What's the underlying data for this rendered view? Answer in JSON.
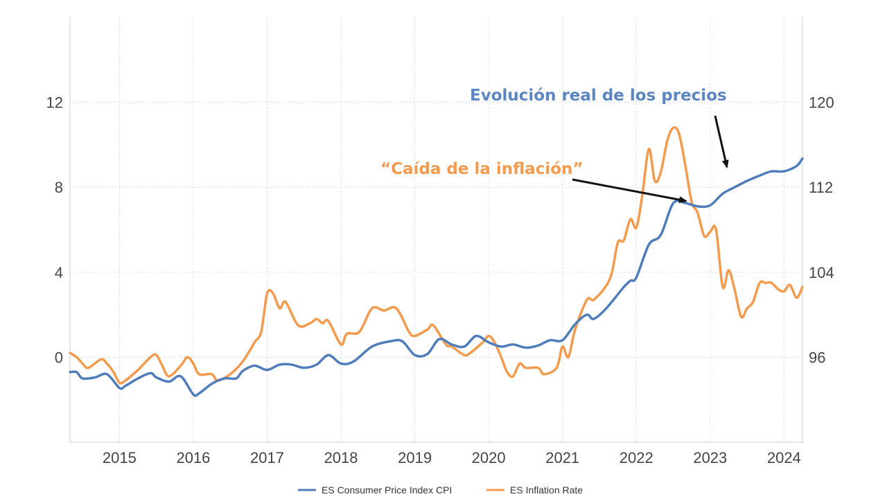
{
  "chart_data": {
    "type": "line",
    "x_range": [
      2014.33,
      2024.25
    ],
    "ylim_left": [
      -4,
      16
    ],
    "ylim_right": [
      88,
      128
    ],
    "x_ticks": [
      "2015",
      "2016",
      "2017",
      "2018",
      "2019",
      "2020",
      "2021",
      "2022",
      "2023",
      "2024"
    ],
    "y_ticks_left": [
      "0",
      "4",
      "8",
      "12"
    ],
    "y_ticks_right": [
      "96",
      "104",
      "112",
      "120"
    ],
    "grid": true,
    "legend_position": "bottom-center",
    "series": [
      {
        "name": "ES Consumer Price Index CPI",
        "axis": "right",
        "color": "#4f7dbc",
        "points": [
          [
            2014.33,
            94.6
          ],
          [
            2014.42,
            94.6
          ],
          [
            2014.5,
            94.0
          ],
          [
            2014.67,
            94.1
          ],
          [
            2014.83,
            94.4
          ],
          [
            2015.0,
            93.1
          ],
          [
            2015.08,
            93.3
          ],
          [
            2015.25,
            94.0
          ],
          [
            2015.42,
            94.5
          ],
          [
            2015.5,
            94.1
          ],
          [
            2015.67,
            93.7
          ],
          [
            2015.83,
            94.2
          ],
          [
            2016.0,
            92.5
          ],
          [
            2016.08,
            92.6
          ],
          [
            2016.25,
            93.5
          ],
          [
            2016.42,
            94.0
          ],
          [
            2016.58,
            94.0
          ],
          [
            2016.67,
            94.7
          ],
          [
            2016.83,
            95.2
          ],
          [
            2017.0,
            94.8
          ],
          [
            2017.17,
            95.3
          ],
          [
            2017.33,
            95.3
          ],
          [
            2017.5,
            95.0
          ],
          [
            2017.67,
            95.3
          ],
          [
            2017.83,
            96.2
          ],
          [
            2018.0,
            95.4
          ],
          [
            2018.17,
            95.6
          ],
          [
            2018.42,
            97.0
          ],
          [
            2018.67,
            97.5
          ],
          [
            2018.83,
            97.5
          ],
          [
            2019.0,
            96.2
          ],
          [
            2019.17,
            96.3
          ],
          [
            2019.33,
            97.7
          ],
          [
            2019.5,
            97.2
          ],
          [
            2019.67,
            97.0
          ],
          [
            2019.83,
            98.0
          ],
          [
            2020.0,
            97.4
          ],
          [
            2020.17,
            97.0
          ],
          [
            2020.33,
            97.2
          ],
          [
            2020.5,
            96.9
          ],
          [
            2020.67,
            97.1
          ],
          [
            2020.83,
            97.6
          ],
          [
            2021.0,
            97.6
          ],
          [
            2021.17,
            99.1
          ],
          [
            2021.33,
            100.0
          ],
          [
            2021.42,
            99.6
          ],
          [
            2021.58,
            100.5
          ],
          [
            2021.83,
            102.6
          ],
          [
            2021.92,
            103.2
          ],
          [
            2022.0,
            103.5
          ],
          [
            2022.17,
            106.6
          ],
          [
            2022.33,
            107.5
          ],
          [
            2022.5,
            110.5
          ],
          [
            2022.67,
            110.5
          ],
          [
            2022.83,
            110.2
          ],
          [
            2023.0,
            110.3
          ],
          [
            2023.17,
            111.4
          ],
          [
            2023.33,
            112.0
          ],
          [
            2023.5,
            112.6
          ],
          [
            2023.67,
            113.1
          ],
          [
            2023.83,
            113.5
          ],
          [
            2024.0,
            113.5
          ],
          [
            2024.17,
            114.0
          ],
          [
            2024.25,
            114.7
          ]
        ]
      },
      {
        "name": "ES Inflation Rate",
        "axis": "left",
        "color": "#f39a4c",
        "points": [
          [
            2014.33,
            0.2
          ],
          [
            2014.42,
            0.0
          ],
          [
            2014.5,
            -0.3
          ],
          [
            2014.58,
            -0.5
          ],
          [
            2014.75,
            -0.1
          ],
          [
            2014.83,
            -0.3
          ],
          [
            2014.92,
            -0.7
          ],
          [
            2015.0,
            -1.2
          ],
          [
            2015.08,
            -1.1
          ],
          [
            2015.25,
            -0.6
          ],
          [
            2015.42,
            0.0
          ],
          [
            2015.5,
            0.1
          ],
          [
            2015.58,
            -0.4
          ],
          [
            2015.67,
            -0.9
          ],
          [
            2015.83,
            -0.4
          ],
          [
            2015.92,
            0.0
          ],
          [
            2016.0,
            -0.3
          ],
          [
            2016.08,
            -0.8
          ],
          [
            2016.25,
            -0.8
          ],
          [
            2016.33,
            -1.1
          ],
          [
            2016.5,
            -0.8
          ],
          [
            2016.67,
            -0.2
          ],
          [
            2016.83,
            0.7
          ],
          [
            2016.92,
            1.2
          ],
          [
            2017.0,
            3.0
          ],
          [
            2017.08,
            3.0
          ],
          [
            2017.17,
            2.3
          ],
          [
            2017.25,
            2.6
          ],
          [
            2017.42,
            1.5
          ],
          [
            2017.58,
            1.6
          ],
          [
            2017.67,
            1.8
          ],
          [
            2017.75,
            1.6
          ],
          [
            2017.83,
            1.7
          ],
          [
            2018.0,
            0.6
          ],
          [
            2018.08,
            1.1
          ],
          [
            2018.25,
            1.2
          ],
          [
            2018.42,
            2.3
          ],
          [
            2018.58,
            2.2
          ],
          [
            2018.75,
            2.3
          ],
          [
            2018.92,
            1.2
          ],
          [
            2019.0,
            1.0
          ],
          [
            2019.17,
            1.3
          ],
          [
            2019.25,
            1.5
          ],
          [
            2019.42,
            0.6
          ],
          [
            2019.5,
            0.5
          ],
          [
            2019.67,
            0.1
          ],
          [
            2019.75,
            0.2
          ],
          [
            2019.92,
            0.7
          ],
          [
            2020.0,
            1.0
          ],
          [
            2020.08,
            0.7
          ],
          [
            2020.17,
            0.0
          ],
          [
            2020.25,
            -0.7
          ],
          [
            2020.33,
            -0.9
          ],
          [
            2020.42,
            -0.3
          ],
          [
            2020.5,
            -0.5
          ],
          [
            2020.67,
            -0.5
          ],
          [
            2020.75,
            -0.8
          ],
          [
            2020.92,
            -0.5
          ],
          [
            2021.0,
            0.5
          ],
          [
            2021.08,
            0.0
          ],
          [
            2021.17,
            1.3
          ],
          [
            2021.33,
            2.7
          ],
          [
            2021.42,
            2.7
          ],
          [
            2021.58,
            3.3
          ],
          [
            2021.67,
            4.0
          ],
          [
            2021.75,
            5.4
          ],
          [
            2021.83,
            5.5
          ],
          [
            2021.92,
            6.5
          ],
          [
            2022.0,
            6.1
          ],
          [
            2022.08,
            7.6
          ],
          [
            2022.17,
            9.8
          ],
          [
            2022.25,
            8.3
          ],
          [
            2022.33,
            8.7
          ],
          [
            2022.42,
            10.2
          ],
          [
            2022.5,
            10.8
          ],
          [
            2022.58,
            10.5
          ],
          [
            2022.67,
            8.9
          ],
          [
            2022.75,
            7.3
          ],
          [
            2022.83,
            6.8
          ],
          [
            2022.92,
            5.7
          ],
          [
            2023.0,
            5.9
          ],
          [
            2023.08,
            6.0
          ],
          [
            2023.17,
            3.3
          ],
          [
            2023.25,
            4.1
          ],
          [
            2023.33,
            3.2
          ],
          [
            2023.42,
            1.9
          ],
          [
            2023.5,
            2.3
          ],
          [
            2023.58,
            2.6
          ],
          [
            2023.67,
            3.5
          ],
          [
            2023.75,
            3.5
          ],
          [
            2023.83,
            3.5
          ],
          [
            2023.92,
            3.2
          ],
          [
            2024.0,
            3.1
          ],
          [
            2024.08,
            3.4
          ],
          [
            2024.17,
            2.8
          ],
          [
            2024.25,
            3.3
          ]
        ]
      }
    ],
    "annotations": [
      {
        "text": "Evolución real de los precios",
        "color": "#5b86c3"
      },
      {
        "text": "“Caída de la inflación”",
        "color": "#f39a4c"
      }
    ]
  }
}
